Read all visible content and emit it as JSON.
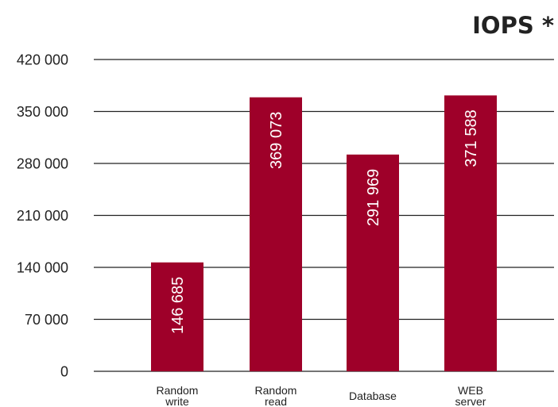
{
  "chart_data": {
    "type": "bar",
    "title": "IOPS *",
    "categories": [
      [
        "Random",
        "write"
      ],
      [
        "Random",
        "read"
      ],
      [
        "Database"
      ],
      [
        "WEB",
        "server"
      ]
    ],
    "values": [
      146685,
      369073,
      291969,
      371588
    ],
    "value_labels": [
      "146 685",
      "369 073",
      "291 969",
      "371 588"
    ],
    "yticks": [
      0,
      70000,
      140000,
      210000,
      280000,
      350000,
      420000
    ],
    "ytick_labels": [
      "0",
      "70 000",
      "140 000",
      "210 000",
      "280 000",
      "350 000",
      "420 000"
    ],
    "ylim": [
      0,
      420000
    ],
    "grid": true,
    "xlabel": "",
    "ylabel": "",
    "bar_color": "#9e0029",
    "grid_color": "#222222"
  }
}
